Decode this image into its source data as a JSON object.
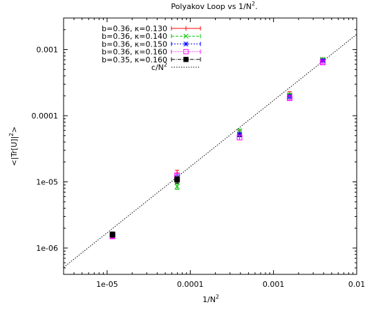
{
  "chart_data": {
    "type": "scatter",
    "title_main": "Polyakov Loop vs 1/N",
    "title_sup": "2",
    "title_tail": ".",
    "xlabel_main": "1/N",
    "xlabel_sup": "2",
    "ylabel_main": "<|Tr[U]|",
    "ylabel_sup": "2",
    "ylabel_tail": ">",
    "x_scale": "log",
    "y_scale": "log",
    "xlim": [
      3e-06,
      0.01
    ],
    "ylim": [
      4e-07,
      0.003
    ],
    "x_ticks": [
      {
        "value": 1e-05,
        "label": "1e-05"
      },
      {
        "value": 0.0001,
        "label": "0.0001"
      },
      {
        "value": 0.001,
        "label": "0.001"
      },
      {
        "value": 0.01,
        "label": "0.01"
      }
    ],
    "y_ticks": [
      {
        "value": 1e-06,
        "label": "1e-06"
      },
      {
        "value": 1e-05,
        "label": "1e-05"
      },
      {
        "value": 0.0001,
        "label": "0.0001"
      },
      {
        "value": 0.001,
        "label": "0.001"
      }
    ],
    "grid": false,
    "legend_position": "top-left",
    "series": [
      {
        "name": "b=0.36, κ=0.130",
        "color": "#ff0000",
        "marker": "plus",
        "points": [
          {
            "x": 6.94e-05,
            "y": 1.35e-05,
            "err": 1.5e-06
          },
          {
            "x": 0.000391,
            "y": 5.4e-05,
            "err": 5e-06
          },
          {
            "x": 0.001563,
            "y": 0.000215,
            "err": 1.5e-05
          },
          {
            "x": 0.003906,
            "y": 0.00071,
            "err": 3e-05
          }
        ]
      },
      {
        "name": "b=0.36, κ=0.140",
        "color": "#00c000",
        "marker": "cross",
        "points": [
          {
            "x": 6.94e-05,
            "y": 8.5e-06,
            "err": 8e-07
          },
          {
            "x": 0.000391,
            "y": 5.8e-05,
            "err": 5e-06
          },
          {
            "x": 0.001563,
            "y": 0.000205,
            "err": 1.2e-05
          },
          {
            "x": 0.003906,
            "y": 0.00071,
            "err": 3e-05
          }
        ]
      },
      {
        "name": "b=0.36, κ=0.150",
        "color": "#0000ff",
        "marker": "star",
        "points": [
          {
            "x": 6.94e-05,
            "y": 1.15e-05,
            "err": 1.2e-06
          },
          {
            "x": 0.000391,
            "y": 5.2e-05,
            "err": 4e-06
          },
          {
            "x": 0.001563,
            "y": 0.000195,
            "err": 1.2e-05
          },
          {
            "x": 0.003906,
            "y": 0.00068,
            "err": 3e-05
          }
        ]
      },
      {
        "name": "b=0.36, κ=0.160",
        "color": "#ff00ff",
        "marker": "box",
        "points": [
          {
            "x": 1.16e-05,
            "y": 1.5e-06,
            "err": 1e-07
          },
          {
            "x": 6.94e-05,
            "y": 1.25e-05,
            "err": 1.2e-06
          },
          {
            "x": 0.000391,
            "y": 4.7e-05,
            "err": 4e-06
          },
          {
            "x": 0.001563,
            "y": 0.000185,
            "err": 1.2e-05
          },
          {
            "x": 0.003906,
            "y": 0.00064,
            "err": 3e-05
          }
        ]
      },
      {
        "name": "b=0.35, κ=0.160",
        "color": "#000000",
        "marker": "filled-box",
        "points": [
          {
            "x": 1.16e-05,
            "y": 1.6e-06,
            "err": 1.5e-07
          },
          {
            "x": 6.94e-05,
            "y": 1.08e-05,
            "err": 1.2e-06
          }
        ]
      }
    ],
    "fit": {
      "name_main": "c/N",
      "name_sup": "2",
      "color": "#000000",
      "style": "dotted",
      "slope": 0.17
    }
  }
}
